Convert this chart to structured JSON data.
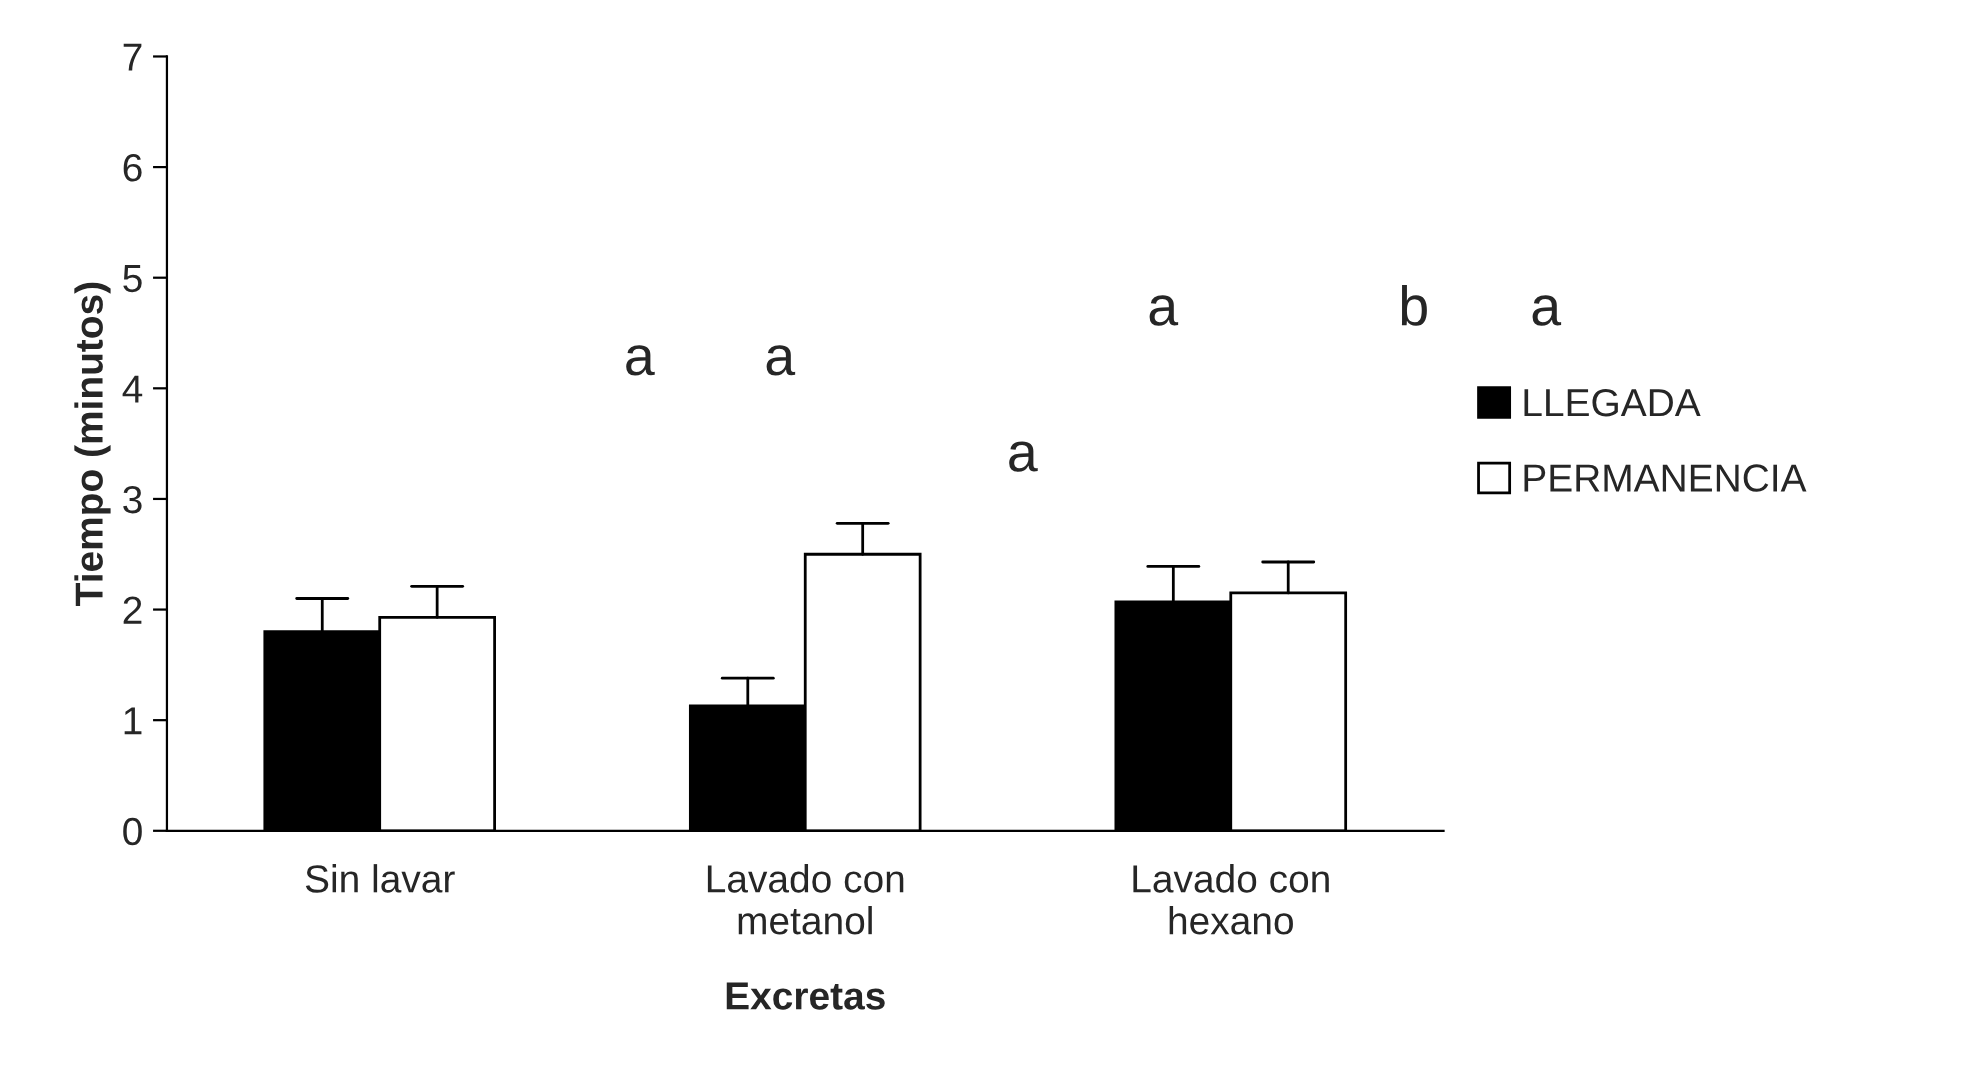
{
  "chart_data": {
    "type": "bar",
    "xlabel": "Excretas",
    "ylabel": "Tiempo (minutos)",
    "categories": [
      "Sin lavar",
      "Lavado con\nmetanol",
      "Lavado con\nhexano"
    ],
    "series": [
      {
        "name": "LLEGADA",
        "color": "#000000",
        "values": [
          1.8,
          1.13,
          2.07
        ],
        "errors": [
          [
            1.8,
            2.1
          ],
          [
            1.13,
            1.38
          ],
          [
            2.07,
            2.39
          ]
        ]
      },
      {
        "name": "PERMANENCIA",
        "color": "#ffffff",
        "values": [
          1.93,
          2.5,
          2.15
        ],
        "errors": [
          [
            1.93,
            2.21
          ],
          [
            2.5,
            2.78
          ],
          [
            2.15,
            2.43
          ]
        ]
      }
    ],
    "ylim": [
      0,
      7
    ],
    "yticks": [
      0,
      1,
      2,
      3,
      4,
      5,
      6,
      7
    ],
    "grid": false,
    "legend": "right",
    "annotations": [
      "a",
      "b",
      "a",
      "a",
      "a",
      "a"
    ]
  }
}
